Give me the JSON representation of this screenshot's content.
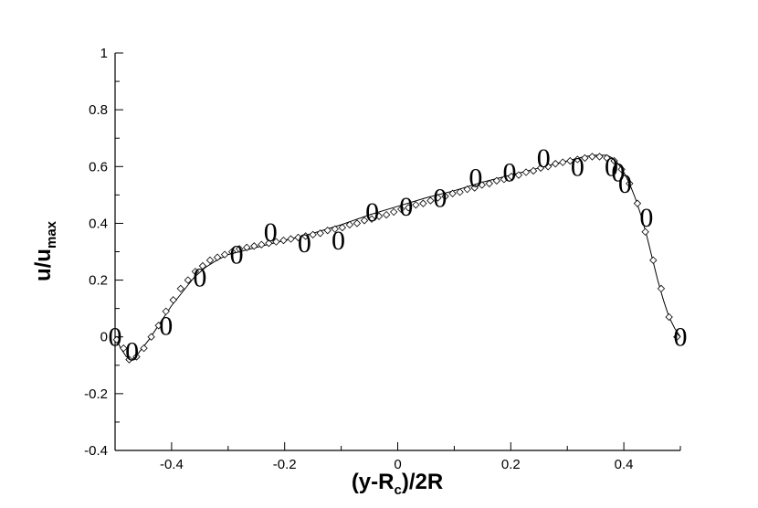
{
  "chart_data": {
    "type": "scatter",
    "title": "",
    "xlabel": {
      "main": "(y-R",
      "sub": "c",
      "rest": ")/2R"
    },
    "ylabel": {
      "main": "u/u",
      "sub": "max"
    },
    "xlim": [
      -0.5,
      0.5
    ],
    "ylim": [
      -0.4,
      1.0
    ],
    "x_ticks": [
      -0.4,
      -0.2,
      0,
      0.2,
      0.4
    ],
    "x_tick_labels": [
      "-0.4",
      "-0.2",
      "0",
      "0.2",
      "0.4"
    ],
    "y_ticks": [
      -0.4,
      -0.2,
      0,
      0.2,
      0.4,
      0.6,
      0.8,
      1.0
    ],
    "y_tick_labels": [
      "-0.4",
      "-0.2",
      "0",
      "0.2",
      "0.4",
      "0.6",
      "0.8",
      "1"
    ],
    "grid": false,
    "legend": "none",
    "series": [
      {
        "marker": "0",
        "symbol_text": "0",
        "x": [
          -0.5,
          -0.47,
          -0.41,
          -0.35,
          -0.285,
          -0.225,
          -0.165,
          -0.105,
          -0.045,
          0.015,
          0.075,
          0.138,
          0.198,
          0.258,
          0.318,
          0.378,
          0.39,
          0.402,
          0.44,
          0.5
        ],
        "y": [
          0.0,
          -0.05,
          0.04,
          0.21,
          0.29,
          0.37,
          0.33,
          0.34,
          0.44,
          0.46,
          0.49,
          0.56,
          0.58,
          0.63,
          0.6,
          0.6,
          0.58,
          0.54,
          0.42,
          0.0
        ]
      },
      {
        "marker": "diamond",
        "x": [
          -0.497,
          -0.485,
          -0.475,
          -0.462,
          -0.449,
          -0.436,
          -0.423,
          -0.41,
          -0.397,
          -0.384,
          -0.371,
          -0.358,
          -0.345,
          -0.332,
          -0.319,
          -0.306,
          -0.293,
          -0.28,
          -0.267,
          -0.254,
          -0.241,
          -0.228,
          -0.215,
          -0.202,
          -0.189,
          -0.176,
          -0.163,
          -0.15,
          -0.137,
          -0.124,
          -0.111,
          -0.098,
          -0.085,
          -0.072,
          -0.059,
          -0.046,
          -0.033,
          -0.02,
          -0.007,
          0.006,
          0.019,
          0.032,
          0.045,
          0.058,
          0.071,
          0.084,
          0.097,
          0.11,
          0.123,
          0.136,
          0.149,
          0.162,
          0.175,
          0.188,
          0.201,
          0.214,
          0.227,
          0.24,
          0.253,
          0.266,
          0.279,
          0.292,
          0.305,
          0.318,
          0.331,
          0.344,
          0.357,
          0.37,
          0.383,
          0.396,
          0.41,
          0.424,
          0.438,
          0.452,
          0.466,
          0.48,
          0.494
        ],
        "y": [
          -0.01,
          -0.04,
          -0.08,
          -0.07,
          -0.04,
          0.0,
          0.04,
          0.09,
          0.13,
          0.17,
          0.2,
          0.23,
          0.25,
          0.27,
          0.28,
          0.29,
          0.3,
          0.31,
          0.315,
          0.32,
          0.325,
          0.33,
          0.335,
          0.34,
          0.345,
          0.35,
          0.355,
          0.36,
          0.365,
          0.375,
          0.38,
          0.385,
          0.395,
          0.4,
          0.41,
          0.415,
          0.425,
          0.43,
          0.44,
          0.45,
          0.455,
          0.465,
          0.47,
          0.48,
          0.49,
          0.495,
          0.505,
          0.51,
          0.52,
          0.525,
          0.535,
          0.54,
          0.55,
          0.555,
          0.565,
          0.57,
          0.58,
          0.585,
          0.595,
          0.6,
          0.61,
          0.615,
          0.62,
          0.625,
          0.63,
          0.635,
          0.635,
          0.63,
          0.62,
          0.59,
          0.54,
          0.47,
          0.37,
          0.27,
          0.17,
          0.07,
          0.0
        ]
      },
      {
        "marker": "none",
        "line": "solid",
        "x": [
          -0.5,
          -0.49,
          -0.48,
          -0.47,
          -0.46,
          -0.44,
          -0.42,
          -0.4,
          -0.38,
          -0.36,
          -0.34,
          -0.32,
          -0.3,
          -0.28,
          -0.25,
          -0.2,
          -0.15,
          -0.1,
          -0.05,
          0.0,
          0.05,
          0.1,
          0.15,
          0.2,
          0.25,
          0.3,
          0.33,
          0.35,
          0.37,
          0.38,
          0.39,
          0.4,
          0.41,
          0.42,
          0.43,
          0.44,
          0.45,
          0.46,
          0.47,
          0.48,
          0.49,
          0.5
        ],
        "y": [
          0.0,
          -0.04,
          -0.07,
          -0.08,
          -0.06,
          -0.01,
          0.05,
          0.11,
          0.16,
          0.21,
          0.245,
          0.27,
          0.29,
          0.3,
          0.315,
          0.34,
          0.365,
          0.395,
          0.43,
          0.46,
          0.49,
          0.515,
          0.545,
          0.57,
          0.595,
          0.62,
          0.635,
          0.64,
          0.64,
          0.63,
          0.61,
          0.58,
          0.54,
          0.49,
          0.43,
          0.36,
          0.28,
          0.2,
          0.13,
          0.07,
          0.03,
          0.0
        ]
      }
    ]
  }
}
